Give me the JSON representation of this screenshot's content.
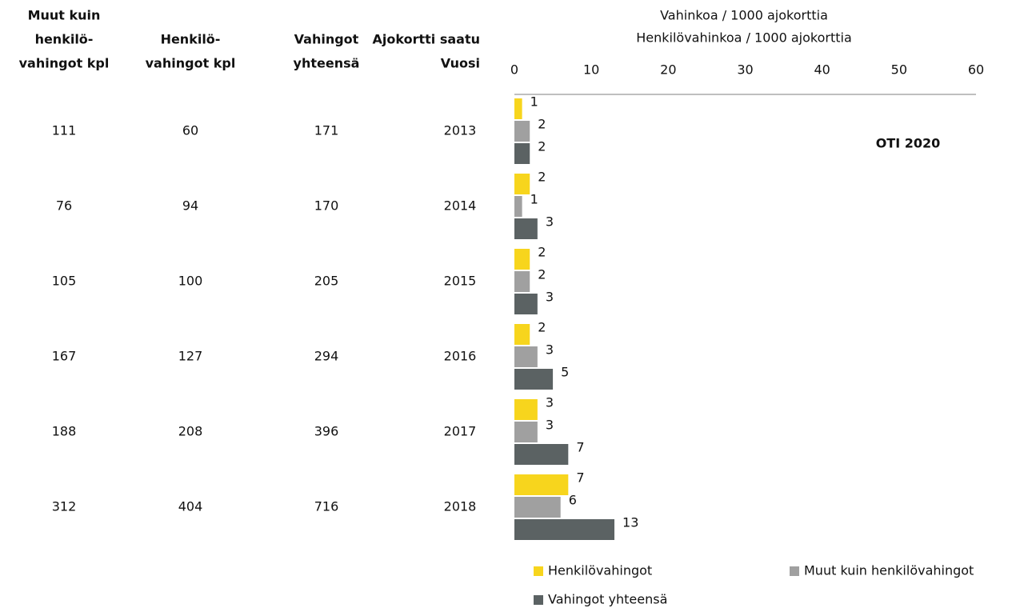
{
  "table": {
    "headers": [
      [
        "Muut kuin",
        "henkilö-",
        "vahingot kpl"
      ],
      [
        "Henkilö-",
        "vahingot kpl"
      ],
      [
        "Vahingot",
        "yhteensä"
      ],
      [
        "Ajokortti saatu",
        "Vuosi"
      ]
    ],
    "rows": [
      [
        111,
        60,
        171
      ],
      [
        76,
        94,
        170
      ],
      [
        105,
        100,
        205
      ],
      [
        167,
        127,
        294
      ],
      [
        188,
        208,
        396
      ],
      [
        312,
        404,
        716
      ]
    ]
  },
  "chart_data": {
    "type": "bar",
    "orientation": "horizontal",
    "xlabel": [
      "Vahinkoa / 1000 ajokorttia",
      "Henkilövahinkoa / 1000 ajokorttia"
    ],
    "annotation": "OTI 2020",
    "categories": [
      "2013",
      "2014",
      "2015",
      "2016",
      "2017",
      "2018"
    ],
    "series": [
      {
        "name": "Henkilövahingot",
        "color": "#f7d51d",
        "values": [
          1,
          2,
          2,
          2,
          3,
          7
        ]
      },
      {
        "name": "Muut kuin henkilövahingot",
        "color": "#a0a0a0",
        "values": [
          2,
          1,
          2,
          3,
          3,
          6
        ]
      },
      {
        "name": "Vahingot yhteensä",
        "color": "#5b6263",
        "values": [
          2,
          3,
          3,
          5,
          7,
          13
        ]
      }
    ],
    "xlim": [
      0,
      60
    ],
    "xticks": [
      0,
      10,
      20,
      30,
      40,
      50,
      60
    ]
  }
}
